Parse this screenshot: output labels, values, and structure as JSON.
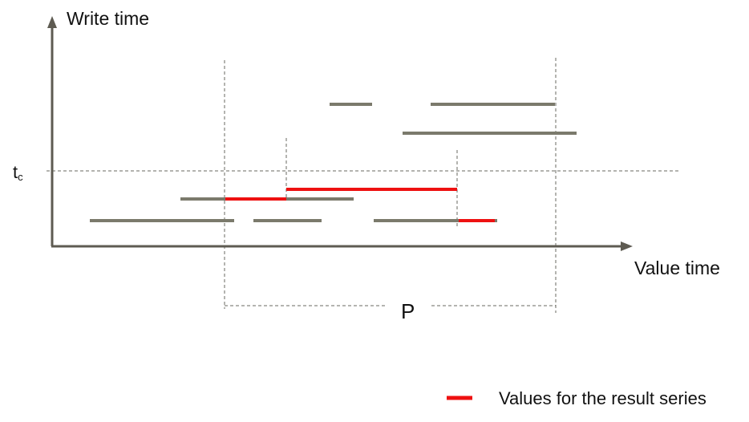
{
  "labels": {
    "y_axis": "Write time",
    "x_axis": "Value time",
    "tc_main": "t",
    "tc_sub": "c",
    "period": "P",
    "legend": "Values for the result series"
  },
  "colors": {
    "axis": "#5e5b52",
    "segment": "#7b7a6c",
    "result": "#ee1111",
    "guide": "#6a6a60"
  },
  "icons": {
    "y_axis_arrow": "arrow-up-icon",
    "x_axis_arrow": "arrow-right-icon",
    "legend_swatch": "red-dash-icon"
  }
}
